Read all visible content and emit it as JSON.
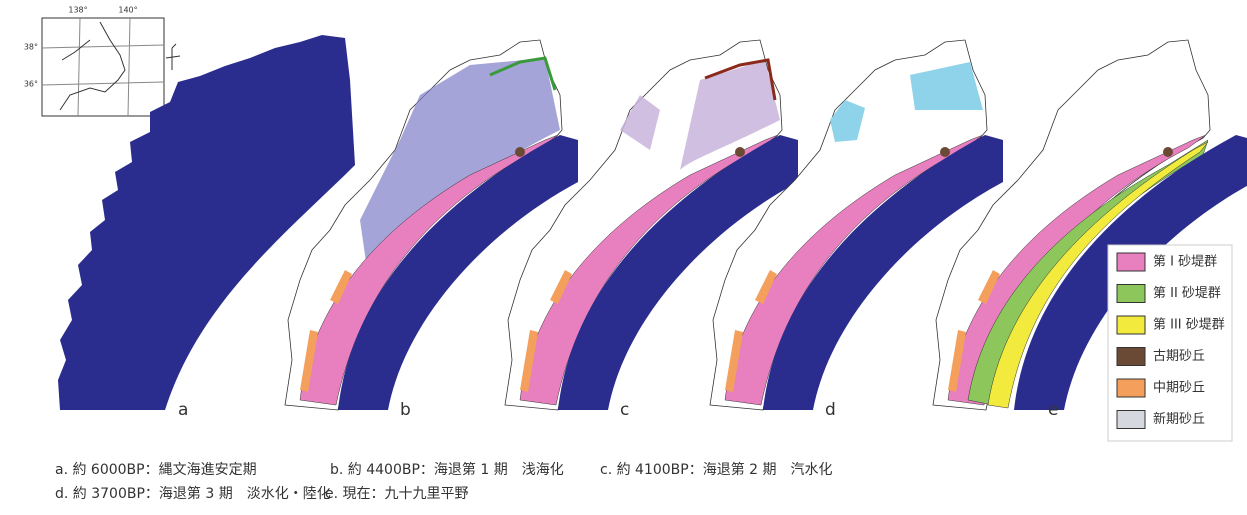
{
  "inset": {
    "lon_labels": [
      "138°",
      "140°"
    ],
    "lat_labels": [
      "38°",
      "36°"
    ]
  },
  "panels": [
    {
      "label": "a"
    },
    {
      "label": "b"
    },
    {
      "label": "c"
    },
    {
      "label": "d"
    },
    {
      "label": "e"
    }
  ],
  "legend": [
    {
      "label": "第 I 砂堤群",
      "color": "#e87fbf"
    },
    {
      "label": "第 II 砂堤群",
      "color": "#8dc65a"
    },
    {
      "label": "第 III 砂堤群",
      "color": "#f2ea3c"
    },
    {
      "label": "古期砂丘",
      "color": "#6b4a35"
    },
    {
      "label": "中期砂丘",
      "color": "#f4a05c"
    },
    {
      "label": "新期砂丘",
      "color": "#d6d8e0"
    }
  ],
  "captions": [
    "a. 約 6000BP：縄文海進安定期",
    "b. 約 4400BP：海退第 1 期　浅海化",
    "c. 約 4100BP：海退第 2 期　汽水化",
    "d. 約 3700BP：海退第 3 期　淡水化・陸化",
    "e. 現在：九十九里平野"
  ]
}
